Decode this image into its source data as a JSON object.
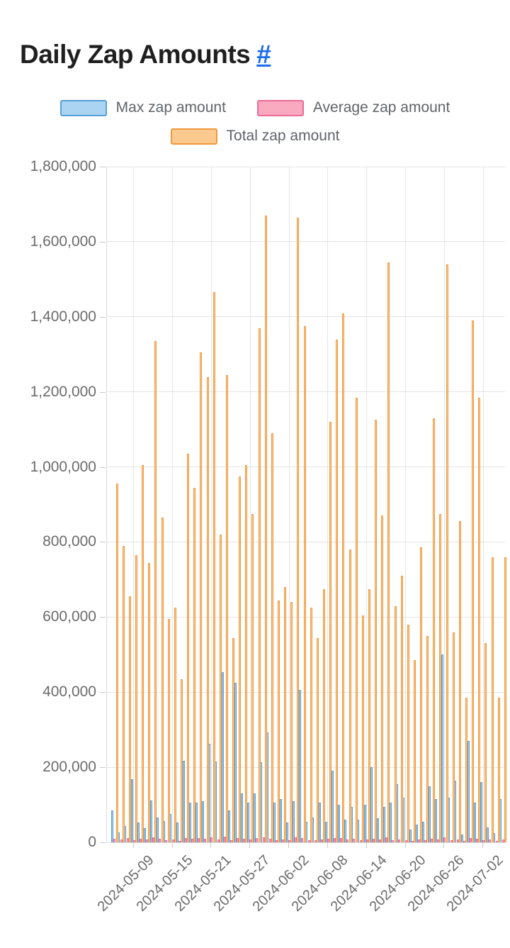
{
  "page": {
    "title": "Daily Zap Amounts",
    "title_link": "#"
  },
  "legend": {
    "items": [
      {
        "label": "Max zap amount",
        "series": "max",
        "fill": "#aad4f2",
        "border": "#57a0d8"
      },
      {
        "label": "Average zap amount",
        "series": "avg",
        "fill": "#f9a9c0",
        "border": "#ec6a97"
      },
      {
        "label": "Total zap amount",
        "series": "total",
        "fill": "#fcca8e",
        "border": "#f0993f"
      }
    ]
  },
  "chart_data": {
    "type": "bar",
    "title": "Daily Zap Amounts",
    "xlabel": "",
    "ylabel": "",
    "ylim": [
      0,
      1800000
    ],
    "ytick_step": 200000,
    "grid": true,
    "legend_position": "top",
    "x_tick_labels": [
      "2024-05-09",
      "2024-05-15",
      "2024-05-21",
      "2024-05-27",
      "2024-06-02",
      "2024-06-08",
      "2024-06-14",
      "2024-06-20",
      "2024-06-26",
      "2024-07-02"
    ],
    "categories": [
      "2024-05-06",
      "2024-05-07",
      "2024-05-08",
      "2024-05-09",
      "2024-05-10",
      "2024-05-11",
      "2024-05-12",
      "2024-05-13",
      "2024-05-14",
      "2024-05-15",
      "2024-05-16",
      "2024-05-17",
      "2024-05-18",
      "2024-05-19",
      "2024-05-20",
      "2024-05-21",
      "2024-05-22",
      "2024-05-23",
      "2024-05-24",
      "2024-05-25",
      "2024-05-26",
      "2024-05-27",
      "2024-05-28",
      "2024-05-29",
      "2024-05-30",
      "2024-05-31",
      "2024-06-01",
      "2024-06-02",
      "2024-06-03",
      "2024-06-04",
      "2024-06-05",
      "2024-06-06",
      "2024-06-07",
      "2024-06-08",
      "2024-06-09",
      "2024-06-10",
      "2024-06-11",
      "2024-06-12",
      "2024-06-13",
      "2024-06-14",
      "2024-06-15",
      "2024-06-16",
      "2024-06-17",
      "2024-06-18",
      "2024-06-19",
      "2024-06-20",
      "2024-06-21",
      "2024-06-22",
      "2024-06-23",
      "2024-06-24",
      "2024-06-25",
      "2024-06-26",
      "2024-06-27",
      "2024-06-28",
      "2024-06-29",
      "2024-06-30",
      "2024-07-01",
      "2024-07-02",
      "2024-07-03",
      "2024-07-04",
      "2024-07-05"
    ],
    "series": [
      {
        "name": "Max zap amount",
        "fill": "#a8d2f0",
        "border": "#5a9fd4",
        "values": [
          85000,
          26000,
          43000,
          168000,
          53000,
          38000,
          111000,
          66000,
          57000,
          76000,
          53000,
          217000,
          106000,
          106000,
          110000,
          262000,
          215000,
          453000,
          85000,
          426000,
          130000,
          106000,
          130000,
          213000,
          292000,
          105000,
          116000,
          53000,
          110000,
          406000,
          55000,
          66000,
          106000,
          55000,
          190000,
          100000,
          60000,
          95000,
          60000,
          100000,
          200000,
          65000,
          95000,
          105000,
          155000,
          120000,
          35000,
          48000,
          55000,
          150000,
          115000,
          500000,
          120000,
          165000,
          20000,
          270000,
          105000,
          160000,
          40000,
          25000,
          115000
        ]
      },
      {
        "name": "Average zap amount",
        "fill": "#f8a9c0",
        "border": "#ec6a97",
        "values": [
          9000,
          7000,
          12000,
          6000,
          10000,
          8000,
          14000,
          9000,
          5000,
          7000,
          4000,
          12000,
          9000,
          11000,
          10000,
          13000,
          8000,
          15000,
          5000,
          12000,
          9000,
          7000,
          11000,
          14000,
          10000,
          6000,
          7000,
          5000,
          13000,
          12000,
          5000,
          6000,
          7000,
          9000,
          11000,
          12000,
          7000,
          10000,
          6000,
          7000,
          10000,
          8000,
          13000,
          6000,
          7000,
          6000,
          4000,
          7000,
          5000,
          10000,
          8000,
          14000,
          6000,
          8000,
          4000,
          12000,
          10000,
          5000,
          7000,
          4000,
          7000
        ]
      },
      {
        "name": "Total zap amount",
        "fill": "#fcca8e",
        "border": "#f0993f",
        "values": [
          955000,
          790000,
          655000,
          765000,
          1005000,
          745000,
          1335000,
          865000,
          595000,
          625000,
          435000,
          1035000,
          945000,
          1305000,
          1240000,
          1465000,
          820000,
          1245000,
          545000,
          975000,
          1005000,
          875000,
          1370000,
          1670000,
          1090000,
          645000,
          680000,
          640000,
          1665000,
          1375000,
          625000,
          545000,
          675000,
          1120000,
          1340000,
          1410000,
          780000,
          1185000,
          605000,
          675000,
          1125000,
          870000,
          1545000,
          630000,
          710000,
          580000,
          485000,
          785000,
          550000,
          1130000,
          875000,
          1540000,
          560000,
          855000,
          385000,
          1390000,
          1185000,
          530000,
          760000,
          385000,
          760000
        ]
      }
    ]
  }
}
